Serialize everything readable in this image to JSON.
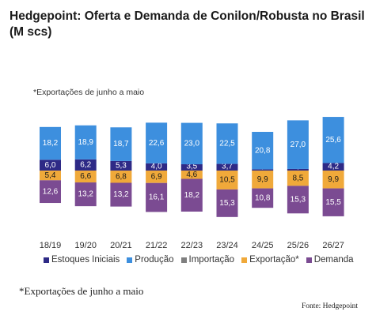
{
  "chart_data": {
    "type": "bar",
    "stacked": true,
    "title": "Hedgepoint: Oferta e Demanda de Conilon/Robusta no Brasil (M scs)",
    "subtitle": "*Exportações de junho a maio",
    "categories": [
      "18/19",
      "19/20",
      "20/21",
      "21/22",
      "22/23",
      "23/24",
      "24/25",
      "25/26",
      "26/27"
    ],
    "supply_stack": [
      {
        "name": "Estoques Iniciais",
        "color": "#2e2a86",
        "values": [
          6.0,
          6.2,
          5.3,
          4.0,
          3.5,
          3.7,
          0.7,
          0.9,
          4.2
        ],
        "labels": [
          "6,0",
          "6,2",
          "5,3",
          "4,0",
          "3,5",
          "3,7",
          "0,7",
          "0,9",
          "4,2"
        ]
      },
      {
        "name": "Produção",
        "color": "#3d8fde",
        "values": [
          18.2,
          18.9,
          18.7,
          22.6,
          23.0,
          22.5,
          20.8,
          27.0,
          25.6
        ],
        "labels": [
          "18,2",
          "18,9",
          "18,7",
          "22,6",
          "23,0",
          "22,5",
          "20,8",
          "27,0",
          "25,6"
        ]
      }
    ],
    "demand_stack": [
      {
        "name": "Exportação*",
        "color": "#f0a93a",
        "values": [
          5.4,
          6.6,
          6.8,
          6.9,
          4.6,
          10.5,
          9.9,
          8.5,
          9.9
        ],
        "labels": [
          "5,4",
          "6,6",
          "6,8",
          "6,9",
          "4,6",
          "10,5",
          "9,9",
          "8,5",
          "9,9"
        ]
      },
      {
        "name": "Demanda",
        "color": "#7b4b92",
        "values": [
          12.6,
          13.2,
          13.2,
          16.1,
          18.2,
          15.3,
          10.8,
          15.3,
          15.5
        ],
        "labels": [
          "12,6",
          "13,2",
          "13,2",
          "16,1",
          "18,2",
          "15,3",
          "10,8",
          "15,3",
          "15,5"
        ]
      }
    ],
    "legend": [
      {
        "label": "Estoques Iniciais",
        "color": "#2e2a86"
      },
      {
        "label": "Produção",
        "color": "#3d8fde"
      },
      {
        "label": "Importação",
        "color": "#7f7f7f"
      },
      {
        "label": "Exportação*",
        "color": "#f0a93a"
      },
      {
        "label": "Demanda",
        "color": "#7b4b92"
      }
    ],
    "legend_position": "bottom",
    "grid": false
  },
  "footnote": "*Exportações de junho a maio",
  "source": "Fonte: Hedgepoint"
}
